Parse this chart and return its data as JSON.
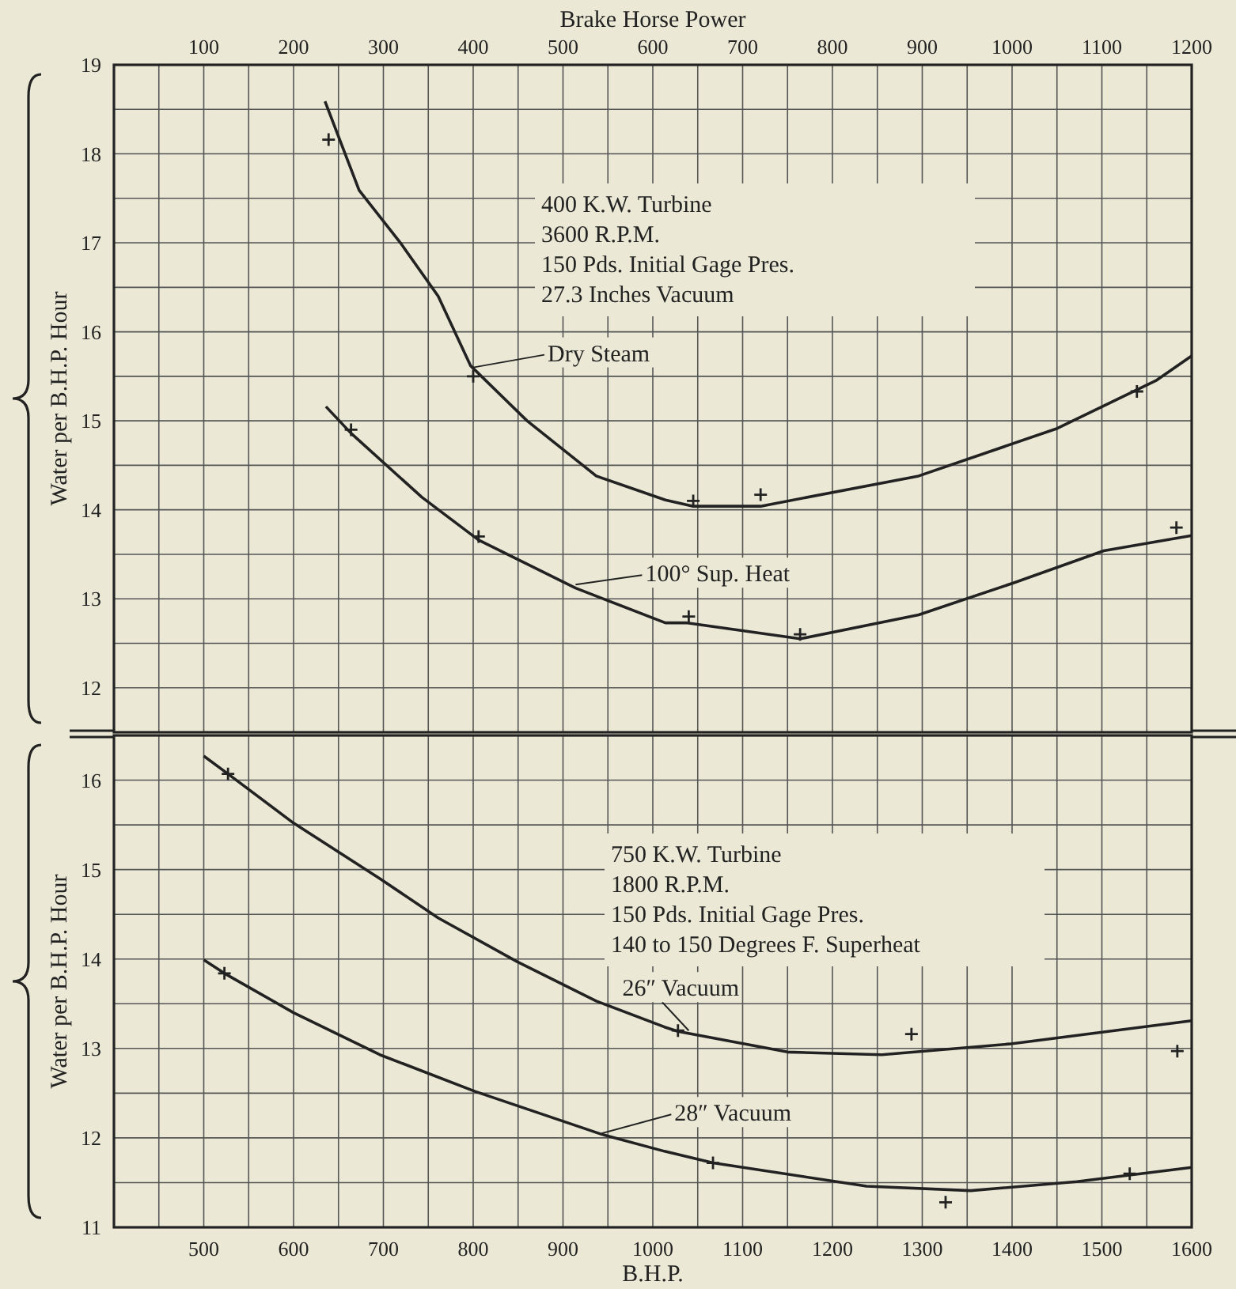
{
  "chart_data": [
    {
      "type": "line",
      "xlabel": "Brake Horse Power",
      "ylabel": "Water per B.H.P. Hour",
      "xlim": [
        0,
        1200
      ],
      "xticks": [
        {
          "value": 50,
          "label": null
        },
        100,
        {
          "value": 150,
          "label": null
        },
        200,
        {
          "value": 250,
          "label": null
        },
        300,
        {
          "value": 350,
          "label": null
        },
        400,
        {
          "value": 450,
          "label": null
        },
        500,
        {
          "value": 550,
          "label": null
        },
        600,
        {
          "value": 650,
          "label": null
        },
        700,
        {
          "value": 750,
          "label": null
        },
        800,
        {
          "value": 850,
          "label": null
        },
        900,
        {
          "value": 950,
          "label": null
        },
        1000,
        {
          "value": 1050,
          "label": null
        },
        1100,
        {
          "value": 1150,
          "label": null
        },
        1200
      ],
      "ylim": [
        11.5,
        19
      ],
      "yticks": [
        12,
        {
          "value": 12.5,
          "label": null
        },
        13,
        {
          "value": 13.5,
          "label": null
        },
        14,
        {
          "value": 14.5,
          "label": null
        },
        15,
        {
          "value": 15.5,
          "label": null
        },
        16,
        {
          "value": 16.5,
          "label": null
        },
        17,
        {
          "value": 17.5,
          "label": null
        },
        18,
        {
          "value": 18.5,
          "label": null
        },
        19
      ],
      "grid": true,
      "line_style": "solid",
      "series": [
        {
          "color": "#222222",
          "marker": "none",
          "x": [
            235,
            273,
            319,
            361,
            397,
            460,
            537,
            614,
            645,
            720,
            896,
            1049,
            1160,
            1200
          ],
          "values": [
            18.59,
            17.59,
            17.0,
            16.4,
            15.62,
            15.0,
            14.38,
            14.11,
            14.04,
            14.04,
            14.38,
            14.91,
            15.45,
            15.73
          ]
        },
        {
          "color": "#222222",
          "marker": "none",
          "x": [
            236,
            264,
            343,
            406,
            514,
            614,
            637,
            764,
            896,
            1002,
            1102,
            1200
          ],
          "values": [
            15.16,
            14.86,
            14.14,
            13.66,
            13.12,
            12.73,
            12.73,
            12.55,
            12.82,
            13.18,
            13.54,
            13.71
          ]
        },
        {
          "type": "scatter",
          "color": "#222222",
          "marker": "cross",
          "x": [
            239,
            400,
            645,
            720,
            1139
          ],
          "values": [
            18.16,
            15.5,
            14.1,
            14.17,
            15.33
          ]
        },
        {
          "type": "scatter",
          "color": "#222222",
          "marker": "cross",
          "x": [
            264,
            406,
            640,
            764,
            1183
          ],
          "values": [
            14.9,
            13.7,
            12.8,
            12.6,
            13.8
          ]
        }
      ],
      "annotations": [
        "400 K.W. Turbine",
        "3600 R.P.M.",
        "150 Pds. Initial Gage Pres.",
        "27.3 Inches Vacuum",
        {
          "text": "Dry Steam",
          "x": 400,
          "y": 15.6
        },
        {
          "text": "100° Sup. Heat",
          "x": 514,
          "y": 13.16
        }
      ]
    },
    {
      "type": "line",
      "xlabel": "B.H.P.",
      "ylabel": "Water per B.H.P. Hour",
      "xlim": [
        400,
        1600
      ],
      "xticks": [
        {
          "value": 450,
          "label": null
        },
        500,
        {
          "value": 550,
          "label": null
        },
        600,
        {
          "value": 650,
          "label": null
        },
        700,
        {
          "value": 750,
          "label": null
        },
        800,
        {
          "value": 850,
          "label": null
        },
        900,
        {
          "value": 950,
          "label": null
        },
        1000,
        {
          "value": 1050,
          "label": null
        },
        1100,
        {
          "value": 1150,
          "label": null
        },
        1200,
        {
          "value": 1250,
          "label": null
        },
        1300,
        {
          "value": 1350,
          "label": null
        },
        1400,
        {
          "value": 1450,
          "label": null
        },
        1500,
        {
          "value": 1550,
          "label": null
        },
        1600
      ],
      "ylim": [
        11,
        16.5
      ],
      "yticks": [
        11,
        {
          "value": 11.5,
          "label": null
        },
        12,
        {
          "value": 12.5,
          "label": null
        },
        13,
        {
          "value": 13.5,
          "label": null
        },
        14,
        {
          "value": 14.5,
          "label": null
        },
        15,
        {
          "value": 15.5,
          "label": null
        },
        16
      ],
      "grid": true,
      "line_style": "solid",
      "series": [
        {
          "color": "#222222",
          "marker": "none",
          "x": [
            500,
            527,
            600,
            696,
            761,
            849,
            937,
            1013,
            1028,
            1150,
            1255,
            1397,
            1600
          ],
          "values": [
            16.27,
            16.07,
            15.52,
            14.9,
            14.46,
            13.97,
            13.53,
            13.24,
            13.19,
            12.96,
            12.93,
            13.05,
            13.31
          ]
        },
        {
          "color": "#222222",
          "marker": "none",
          "x": [
            500,
            523,
            600,
            696,
            802,
            943,
            1013,
            1067,
            1238,
            1354,
            1472,
            1600
          ],
          "values": [
            13.99,
            13.84,
            13.4,
            12.93,
            12.52,
            12.04,
            11.85,
            11.72,
            11.46,
            11.41,
            11.51,
            11.67
          ]
        },
        {
          "type": "scatter",
          "color": "#222222",
          "marker": "cross",
          "x": [
            527,
            1028,
            1288,
            1584
          ],
          "values": [
            16.07,
            13.2,
            13.16,
            12.97
          ]
        },
        {
          "type": "scatter",
          "color": "#222222",
          "marker": "cross",
          "x": [
            523,
            1067,
            1326,
            1531
          ],
          "values": [
            13.84,
            11.72,
            11.28,
            11.6
          ]
        }
      ],
      "annotations": [
        "750 K.W. Turbine",
        "1800 R.P.M.",
        "150 Pds. Initial Gage Pres.",
        "140 to 150 Degrees F. Superheat",
        {
          "text": "26″ Vacuum",
          "x": 1040,
          "y": 13.2
        },
        {
          "text": "28″ Vacuum",
          "x": 943,
          "y": 12.05
        }
      ]
    }
  ]
}
